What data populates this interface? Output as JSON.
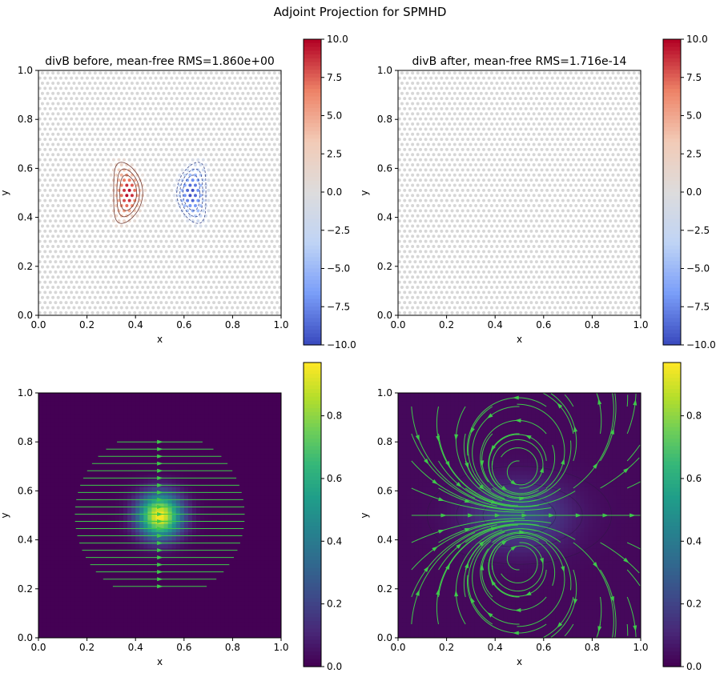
{
  "suptitle": "Adjoint Projection for SPMHD",
  "colors": {
    "particle": "#d7d7d7",
    "streamline": "#3ec94a",
    "coolwarm": [
      "#3b4cc0",
      "#7b9ff9",
      "#c0d4f5",
      "#dddcdc",
      "#f2cbb7",
      "#ee8468",
      "#b40426"
    ],
    "viridis": [
      "#440154",
      "#482878",
      "#3e4989",
      "#31688e",
      "#26828e",
      "#1f9e89",
      "#35b779",
      "#6ece58",
      "#b5de2b",
      "#fde725"
    ]
  },
  "chart_data": [
    {
      "type": "scatter",
      "title": "divB before, mean-free RMS=1.860e+00",
      "xlabel": "x",
      "ylabel": "y",
      "xlim": [
        0.0,
        1.0
      ],
      "ylim": [
        0.0,
        1.0
      ],
      "xticks": [
        "0.0",
        "0.2",
        "0.4",
        "0.6",
        "0.8",
        "1.0"
      ],
      "yticks": [
        "0.0",
        "0.2",
        "0.4",
        "0.6",
        "0.8",
        "1.0"
      ],
      "colormap": "coolwarm",
      "colorbar": {
        "range": [
          -10.0,
          10.0
        ],
        "ticks": [
          "10.0",
          "7.5",
          "5.0",
          "2.5",
          "0.0",
          "−2.5",
          "−5.0",
          "−7.5",
          "−10.0"
        ]
      },
      "positive_lobe_center": [
        0.37,
        0.5
      ],
      "negative_lobe_center": [
        0.63,
        0.5
      ],
      "peak_value": 10.0
    },
    {
      "type": "scatter",
      "title": "divB after, mean-free RMS=1.716e-14",
      "xlabel": "x",
      "ylabel": "y",
      "xlim": [
        0.0,
        1.0
      ],
      "ylim": [
        0.0,
        1.0
      ],
      "xticks": [
        "0.0",
        "0.2",
        "0.4",
        "0.6",
        "0.8",
        "1.0"
      ],
      "yticks": [
        "0.0",
        "0.2",
        "0.4",
        "0.6",
        "0.8",
        "1.0"
      ],
      "colormap": "coolwarm",
      "colorbar": {
        "range": [
          -10.0,
          10.0
        ],
        "ticks": [
          "10.0",
          "7.5",
          "5.0",
          "2.5",
          "0.0",
          "−2.5",
          "−5.0",
          "−7.5",
          "−10.0"
        ]
      }
    },
    {
      "type": "heatmap",
      "title": "",
      "xlabel": "x",
      "ylabel": "y",
      "xlim": [
        0.0,
        1.0
      ],
      "ylim": [
        0.0,
        1.0
      ],
      "xticks": [
        "0.0",
        "0.2",
        "0.4",
        "0.6",
        "0.8",
        "1.0"
      ],
      "yticks": [
        "0.0",
        "0.2",
        "0.4",
        "0.6",
        "0.8",
        "1.0"
      ],
      "colormap": "viridis",
      "colorbar": {
        "range": [
          0.0,
          0.97
        ],
        "ticks": [
          "0.8",
          "0.6",
          "0.4",
          "0.2",
          "0.0"
        ]
      },
      "field_center": [
        0.5,
        0.5
      ],
      "field_peak": 0.97,
      "streamlines": "horizontal, left to right"
    },
    {
      "type": "heatmap",
      "title": "",
      "xlabel": "x",
      "ylabel": "y",
      "xlim": [
        0.0,
        1.0
      ],
      "ylim": [
        0.0,
        1.0
      ],
      "xticks": [
        "0.0",
        "0.2",
        "0.4",
        "0.6",
        "0.8",
        "1.0"
      ],
      "yticks": [
        "0.0",
        "0.2",
        "0.4",
        "0.6",
        "0.8",
        "1.0"
      ],
      "colormap": "viridis",
      "colorbar": {
        "range": [
          0.0,
          0.97
        ],
        "ticks": [
          "0.8",
          "0.6",
          "0.4",
          "0.2",
          "0.0"
        ]
      },
      "field_center": [
        0.5,
        0.5
      ],
      "field_peak": 0.22,
      "vortex_centers": [
        [
          0.5,
          0.67
        ],
        [
          0.5,
          0.33
        ]
      ],
      "streamlines": "dipole circulation"
    }
  ]
}
